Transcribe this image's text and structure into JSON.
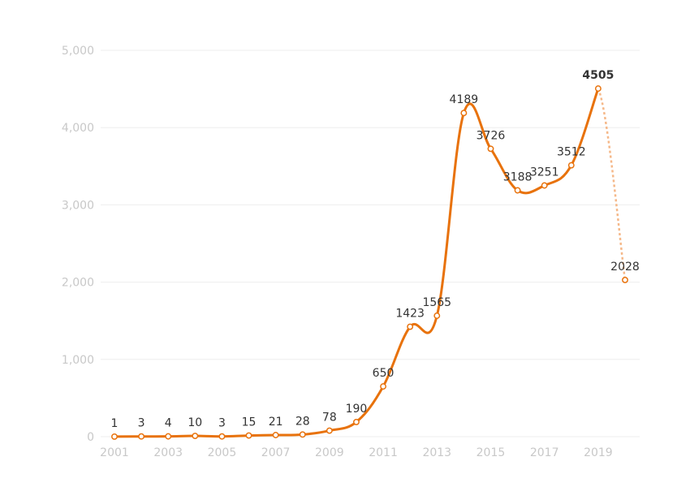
{
  "chart_data": {
    "type": "line",
    "title": "",
    "xlabel": "",
    "ylabel": "",
    "x": [
      "2001",
      "2002",
      "2003",
      "2004",
      "2005",
      "2006",
      "2007",
      "2008",
      "2009",
      "2010",
      "2011",
      "2012",
      "2013",
      "2014",
      "2015",
      "2016",
      "2017",
      "2018",
      "2019",
      "2020"
    ],
    "x_tick_labels": [
      "2001",
      "2003",
      "2005",
      "2007",
      "2009",
      "2011",
      "2013",
      "2015",
      "2017",
      "2019"
    ],
    "series": [
      {
        "values": [
          1,
          3,
          4,
          10,
          3,
          15,
          21,
          28,
          78,
          190,
          650,
          1423,
          1565,
          4189,
          3726,
          3188,
          3251,
          3512,
          4505,
          2028
        ],
        "data_labels": [
          "1",
          "3",
          "4",
          "10",
          "3",
          "15",
          "21",
          "28",
          "78",
          "190",
          "650",
          "1423",
          "1565",
          "4189",
          "3726",
          "3188",
          "3251",
          "3512",
          "4505",
          "2028"
        ],
        "color": "#e8720c",
        "projected_segment_color": "#f5b889",
        "projected_from_index": 18
      }
    ],
    "y_ticks": [
      0,
      1000,
      2000,
      3000,
      4000,
      5000
    ],
    "y_tick_labels": [
      "0",
      "1,000",
      "2,000",
      "3,000",
      "4,000",
      "5,000"
    ],
    "ylim": [
      0,
      5000
    ],
    "grid": true,
    "smooth": true
  }
}
